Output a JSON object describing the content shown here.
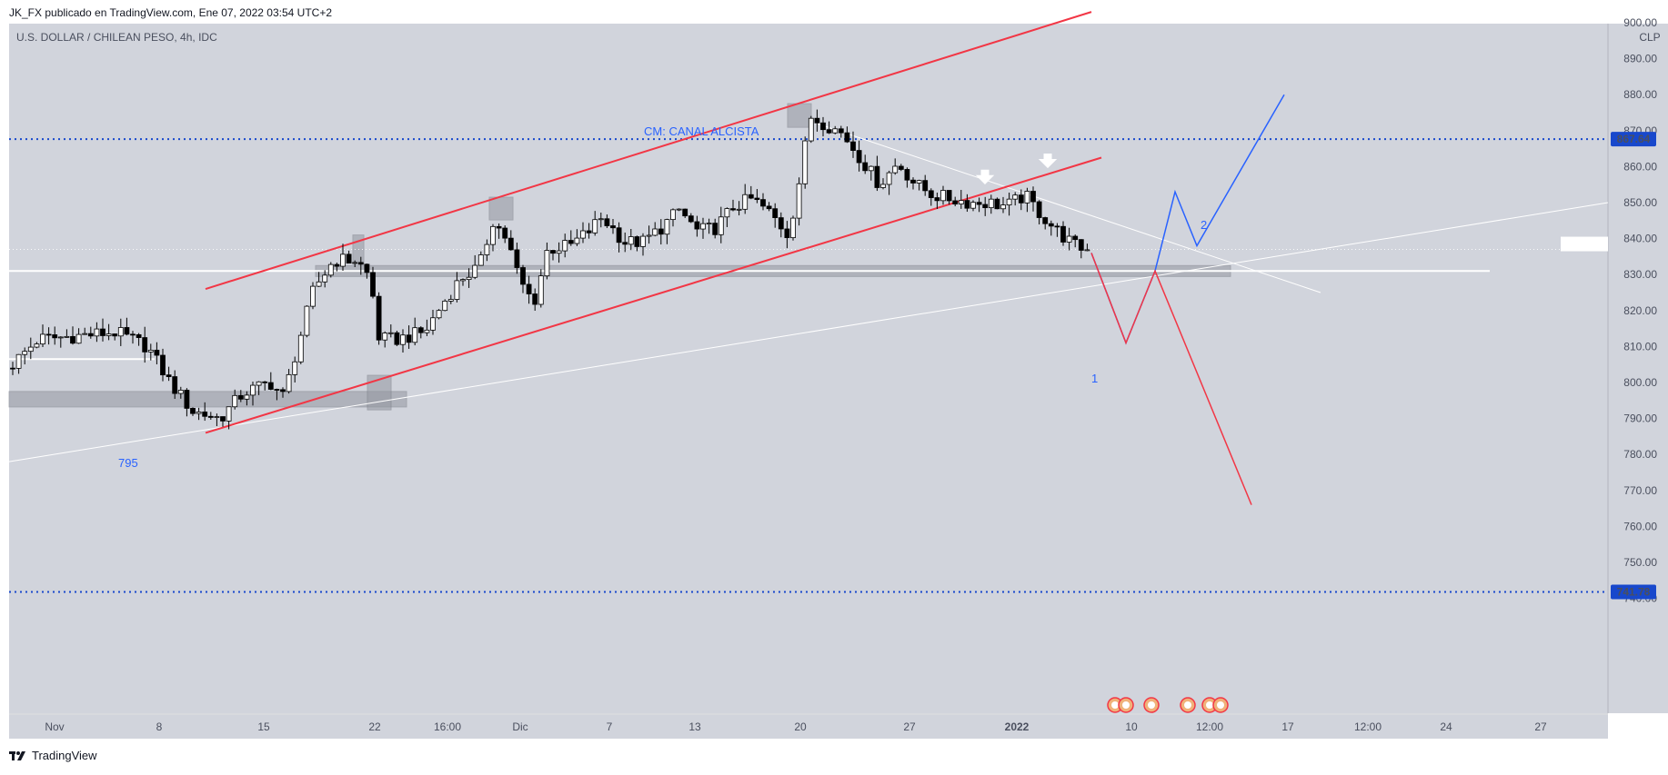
{
  "header": {
    "publisher": "JK_FX publicado en TradingView.com, Ene 07, 2022 03:54 UTC+2"
  },
  "footer": {
    "brand": "TradingView",
    "logo_icon": "tradingview-logo-icon"
  },
  "chart_data": {
    "type": "candlestick",
    "title": "U.S. DOLLAR / CHILEAN PESO, 4h, IDC",
    "currency": "CLP",
    "ylim": [
      741,
      901
    ],
    "y_ticks": [
      "900.00",
      "890.00",
      "880.00",
      "870.00",
      "860.00",
      "850.00",
      "840.00",
      "830.00",
      "820.00",
      "810.00",
      "800.00",
      "790.00",
      "780.00",
      "770.00",
      "760.00",
      "750.00",
      "740.00"
    ],
    "x_ticks": [
      "Nov",
      "8",
      "15",
      "22",
      "16:00",
      "Dic",
      "7",
      "13",
      "20",
      "27",
      "2022",
      "10",
      "12:00",
      "17",
      "12:00",
      "24",
      "27"
    ],
    "price_labels": [
      {
        "label": "867.64",
        "value": 867.64,
        "color": "#1848cc"
      },
      {
        "label": "741.78",
        "value": 741.78,
        "color": "#1848cc"
      }
    ],
    "annotations": [
      {
        "text": "CM: CANAL ALCISTA",
        "color": "#2962ff"
      },
      {
        "text": "795",
        "color": "#2962ff"
      },
      {
        "text": "1",
        "color": "#2962ff"
      },
      {
        "text": "2",
        "color": "#2962ff"
      }
    ],
    "grid": false,
    "colors": {
      "background": "#d1d4dc",
      "bullish": "#ffffff",
      "bearish": "#000000",
      "channel": "#f23645",
      "scenario_up": "#2962ff",
      "scenario_down": "#f23645",
      "price_line": "#1848cc",
      "zone": "#9598a1"
    }
  }
}
